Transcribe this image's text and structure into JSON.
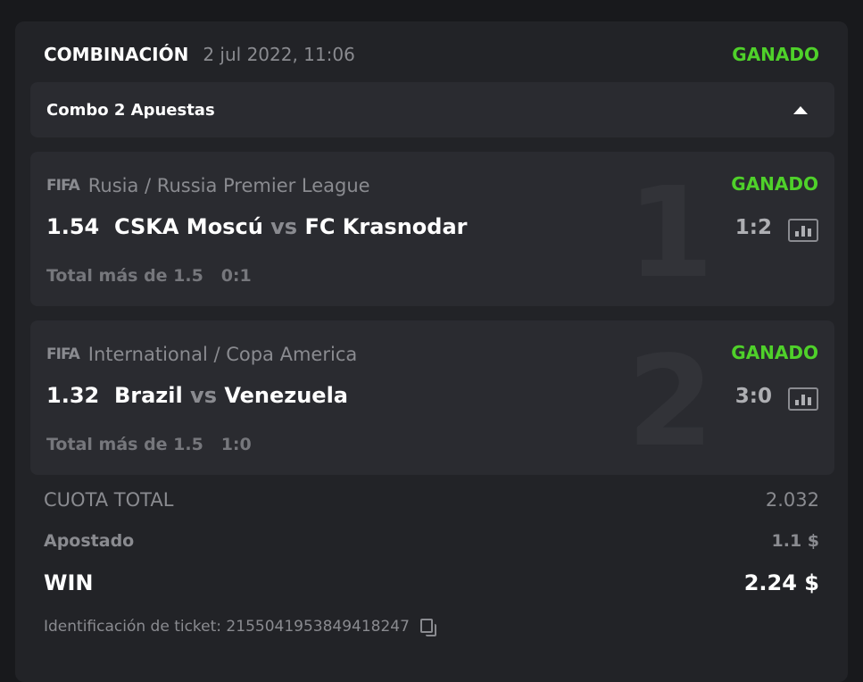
{
  "header": {
    "title": "COMBINACIÓN",
    "date": "2 jul 2022, 11:06",
    "status": "GANADO"
  },
  "combo": {
    "label": "Combo 2 Apuestas"
  },
  "bets": [
    {
      "index": "1",
      "sport": "FIFA",
      "league": "Rusia / Russia Premier League",
      "status": "GANADO",
      "odds": "1.54",
      "home": "CSKA Moscú",
      "vs": "vs",
      "away": "FC Krasnodar",
      "score": "1:2",
      "market": "Total más de 1.5",
      "market_score": "0:1"
    },
    {
      "index": "2",
      "sport": "FIFA",
      "league": "International / Copa America",
      "status": "GANADO",
      "odds": "1.32",
      "home": "Brazil",
      "vs": "vs",
      "away": "Venezuela",
      "score": "3:0",
      "market": "Total más de 1.5",
      "market_score": "1:0"
    }
  ],
  "summary": {
    "total_odds_label": "CUOTA TOTAL",
    "total_odds": "2.032",
    "staked_label": "Apostado",
    "staked": "1.1 $",
    "win_label": "WIN",
    "win": "2.24 $"
  },
  "ticket": {
    "label": "Identificación de ticket: 2155041953849418247"
  },
  "colors": {
    "won": "#4fd12a",
    "background": "#18191c",
    "card": "#222327"
  }
}
